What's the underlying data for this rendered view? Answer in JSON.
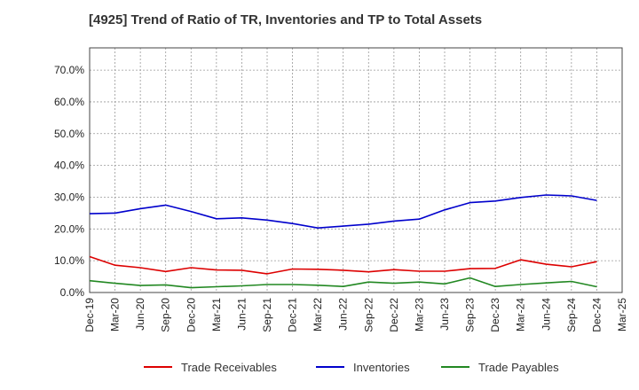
{
  "chart_data": {
    "type": "line",
    "title": "[4925]  Trend of Ratio of TR, Inventories and TP to Total Assets",
    "xlabel": "",
    "ylabel": "",
    "x_tick_labels": [
      "Dec-19",
      "Mar-20",
      "Jun-20",
      "Sep-20",
      "Dec-20",
      "Mar-21",
      "Jun-21",
      "Sep-21",
      "Dec-21",
      "Mar-22",
      "Jun-22",
      "Sep-22",
      "Dec-22",
      "Mar-23",
      "Jun-23",
      "Sep-23",
      "Dec-23",
      "Mar-24",
      "Jun-24",
      "Sep-24",
      "Dec-24",
      "Mar-25"
    ],
    "y_tick_labels": [
      "0.0%",
      "10.0%",
      "20.0%",
      "30.0%",
      "40.0%",
      "50.0%",
      "60.0%",
      "70.0%"
    ],
    "y_ticks": [
      0,
      10,
      20,
      30,
      40,
      50,
      60,
      70
    ],
    "ylim": [
      0,
      77
    ],
    "grid": true,
    "legend_position": "bottom",
    "categories": [
      "Dec-19",
      "Mar-20",
      "Jun-20",
      "Sep-20",
      "Dec-20",
      "Mar-21",
      "Jun-21",
      "Sep-21",
      "Dec-21",
      "Mar-22",
      "Jun-22",
      "Sep-22",
      "Dec-22",
      "Mar-23",
      "Jun-23",
      "Sep-23",
      "Dec-23",
      "Mar-24",
      "Jun-24",
      "Sep-24",
      "Dec-24"
    ],
    "series": [
      {
        "name": "Trade Receivables",
        "color": "#dd0000",
        "values": [
          11.3,
          8.6,
          7.8,
          6.6,
          7.8,
          7.1,
          7.0,
          5.9,
          7.4,
          7.3,
          7.0,
          6.5,
          7.2,
          6.7,
          6.7,
          7.5,
          7.6,
          10.3,
          8.9,
          8.1,
          9.7
        ]
      },
      {
        "name": "Inventories",
        "color": "#0000cc",
        "values": [
          24.8,
          25.0,
          26.4,
          27.5,
          25.5,
          23.2,
          23.5,
          22.8,
          21.7,
          20.3,
          20.9,
          21.5,
          22.5,
          23.1,
          26.0,
          28.3,
          28.8,
          29.9,
          30.7,
          30.4,
          29.0
        ]
      },
      {
        "name": "Trade Payables",
        "color": "#228822",
        "values": [
          3.7,
          2.9,
          2.2,
          2.4,
          1.5,
          1.8,
          2.1,
          2.5,
          2.5,
          2.3,
          1.9,
          3.3,
          2.9,
          3.3,
          2.7,
          4.6,
          1.9,
          2.5,
          3.0,
          3.5,
          1.8
        ]
      }
    ]
  }
}
